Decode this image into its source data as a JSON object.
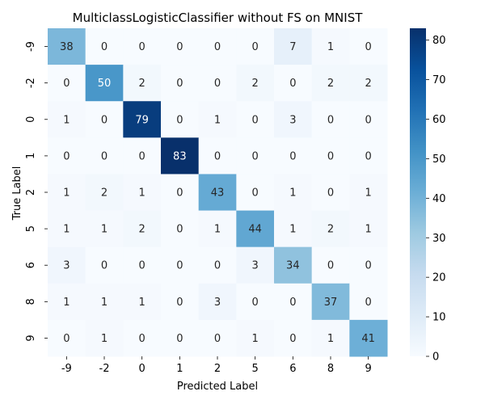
{
  "chart_data": {
    "type": "heatmap",
    "title": "MulticlassLogisticClassifier without FS on MNIST",
    "xlabel": "Predicted Label",
    "ylabel": "True Label",
    "x_categories": [
      "-9",
      "-2",
      "0",
      "1",
      "2",
      "5",
      "6",
      "8",
      "9"
    ],
    "y_categories": [
      "-9",
      "-2",
      "0",
      "1",
      "2",
      "5",
      "6",
      "8",
      "9"
    ],
    "values": [
      [
        38,
        0,
        0,
        0,
        0,
        0,
        7,
        1,
        0
      ],
      [
        0,
        50,
        2,
        0,
        0,
        2,
        0,
        2,
        2
      ],
      [
        1,
        0,
        79,
        0,
        1,
        0,
        3,
        0,
        0
      ],
      [
        0,
        0,
        0,
        83,
        0,
        0,
        0,
        0,
        0
      ],
      [
        1,
        2,
        1,
        0,
        43,
        0,
        1,
        0,
        1
      ],
      [
        1,
        1,
        2,
        0,
        1,
        44,
        1,
        2,
        1
      ],
      [
        3,
        0,
        0,
        0,
        0,
        3,
        34,
        0,
        0
      ],
      [
        1,
        1,
        1,
        0,
        3,
        0,
        0,
        37,
        0
      ],
      [
        0,
        1,
        0,
        0,
        0,
        1,
        0,
        1,
        41
      ]
    ],
    "colorbar": {
      "colormap": "Blues",
      "range": [
        0,
        83
      ],
      "ticks": [
        0,
        10,
        20,
        30,
        40,
        50,
        60,
        70,
        80
      ]
    },
    "grid": false
  }
}
